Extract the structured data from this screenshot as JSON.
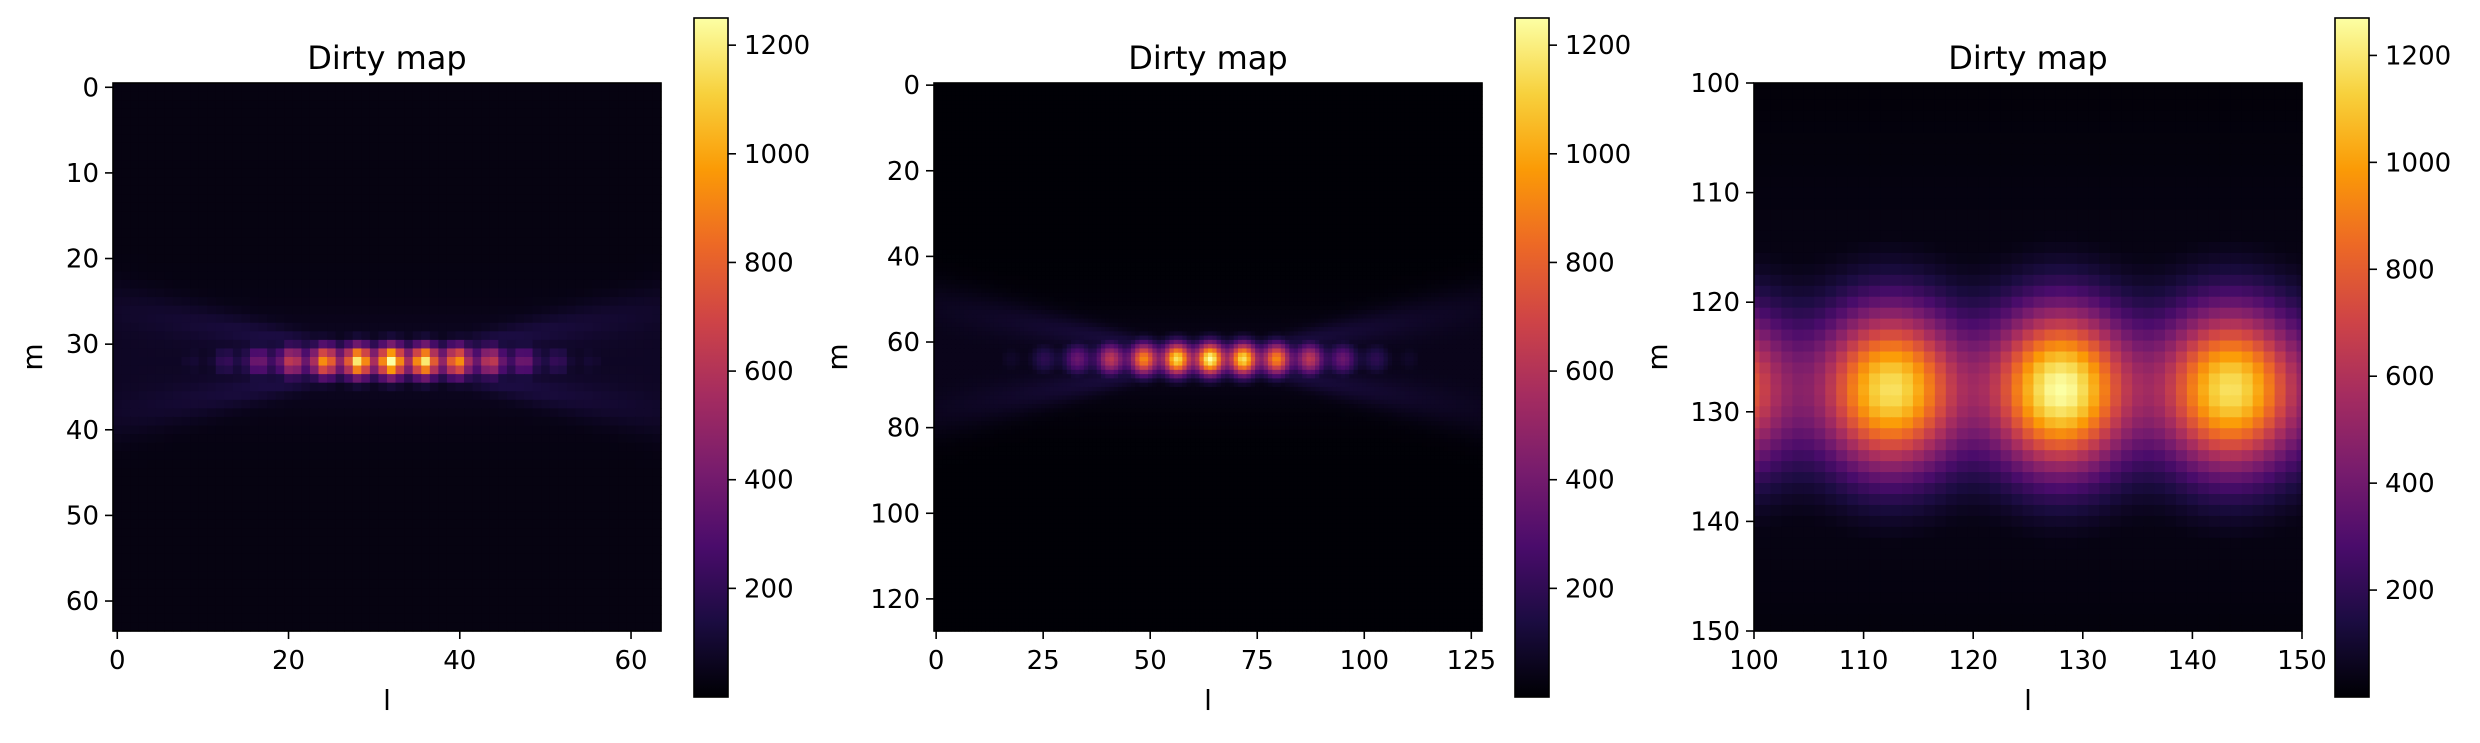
{
  "colormap": "inferno",
  "colormap_stops": [
    "#000004",
    "#1b0c41",
    "#4a0c6b",
    "#781c6d",
    "#a52c60",
    "#cf4446",
    "#ed6925",
    "#fb9b06",
    "#f7d13d",
    "#fcffa4"
  ],
  "chart_data": [
    {
      "type": "heatmap",
      "title": "Dirty map",
      "xlabel": "l",
      "ylabel": "m",
      "grid_size": 64,
      "xlim": [
        -0.5,
        63.5
      ],
      "ylim": [
        63.5,
        -0.5
      ],
      "xticks": [
        0,
        20,
        40,
        60
      ],
      "xtick_labels": [
        "0",
        "20",
        "40",
        "60"
      ],
      "yticks": [
        0,
        10,
        20,
        30,
        40,
        50,
        60
      ],
      "ytick_labels": [
        "0",
        "10",
        "20",
        "30",
        "40",
        "50",
        "60"
      ],
      "source_center": [
        32,
        32
      ],
      "peak_value": 1250,
      "floor_value": 30,
      "colorbar_range": [
        0,
        1250
      ],
      "colorbar_ticks": [
        200,
        400,
        600,
        800,
        1000,
        1200
      ],
      "colorbar_tick_labels": [
        "200",
        "400",
        "600",
        "800",
        "1000",
        "1200"
      ]
    },
    {
      "type": "heatmap",
      "title": "Dirty map",
      "xlabel": "l",
      "ylabel": "m",
      "grid_size": 128,
      "xlim": [
        -0.5,
        127.5
      ],
      "ylim": [
        127.5,
        -0.5
      ],
      "xticks": [
        0,
        25,
        50,
        75,
        100,
        125
      ],
      "xtick_labels": [
        "0",
        "25",
        "50",
        "75",
        "100",
        "125"
      ],
      "yticks": [
        0,
        20,
        40,
        60,
        80,
        100,
        120
      ],
      "ytick_labels": [
        "0",
        "20",
        "40",
        "60",
        "80",
        "100",
        "120"
      ],
      "source_center": [
        64,
        64
      ],
      "peak_value": 1250,
      "floor_value": 5,
      "colorbar_range": [
        0,
        1250
      ],
      "colorbar_ticks": [
        200,
        400,
        600,
        800,
        1000,
        1200
      ],
      "colorbar_tick_labels": [
        "200",
        "400",
        "600",
        "800",
        "1000",
        "1200"
      ]
    },
    {
      "type": "heatmap",
      "title": "Dirty map",
      "xlabel": "l",
      "ylabel": "m",
      "grid_size": 256,
      "xlim": [
        100,
        150
      ],
      "ylim": [
        150,
        100
      ],
      "xticks": [
        100,
        110,
        120,
        130,
        140,
        150
      ],
      "xtick_labels": [
        "100",
        "110",
        "120",
        "130",
        "140",
        "150"
      ],
      "yticks": [
        100,
        110,
        120,
        130,
        140,
        150
      ],
      "ytick_labels": [
        "100",
        "110",
        "120",
        "130",
        "140",
        "150"
      ],
      "source_center": [
        128,
        128
      ],
      "peak_value": 1270,
      "floor_value": 3,
      "colorbar_range": [
        0,
        1270
      ],
      "colorbar_ticks": [
        200,
        400,
        600,
        800,
        1000,
        1200
      ],
      "colorbar_tick_labels": [
        "200",
        "400",
        "600",
        "800",
        "1000",
        "1200"
      ]
    }
  ]
}
